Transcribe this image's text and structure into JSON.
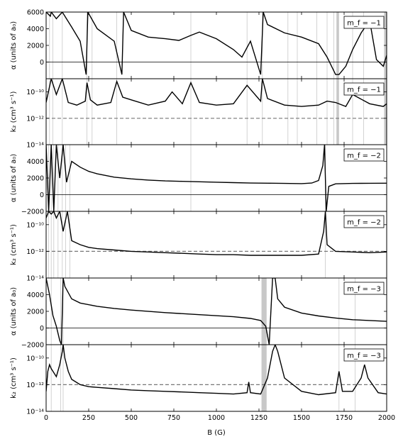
{
  "chart_data": {
    "type": "line",
    "x_axis": {
      "label": "B (G)",
      "range": [
        0,
        2000
      ],
      "ticks": [
        0,
        250,
        500,
        750,
        1000,
        1250,
        1500,
        1750,
        2000
      ],
      "tick_labels": [
        "0",
        "250",
        "500",
        "750",
        "1000",
        "1250",
        "1500",
        "1750",
        "2000"
      ]
    },
    "k2_threshold": 1e-12,
    "panels": [
      {
        "id": "alpha_m1",
        "kind": "alpha",
        "legend": "m_f = −1",
        "ylabel": "α (units of a₀)",
        "ylim": [
          -2000,
          6000
        ],
        "ticks": [
          0,
          2000,
          4000,
          6000
        ],
        "tick_labels": [
          "0",
          "2000",
          "4000",
          "6000"
        ],
        "shaded": [
          [
            1705,
            1720
          ],
          [
            1985,
            2000
          ]
        ],
        "resonance_lines": [
          20,
          40,
          95,
          240,
          270,
          415,
          850,
          1180,
          1270,
          1420,
          1475,
          1590,
          1650,
          1690,
          1800,
          1865
        ],
        "series": [
          {
            "x": [
              0,
              25,
              30,
              60,
              95,
              150,
              200,
              235,
              245,
              300,
              400,
              445,
              455,
              500,
              600,
              700,
              780,
              850,
              900,
              1000,
              1100,
              1150,
              1200,
              1260,
              1275,
              1300,
              1400,
              1500,
              1600,
              1650,
              1700,
              1720,
              1760,
              1800,
              1850,
              1900,
              1940,
              1980,
              2000
            ],
            "y": [
              6000,
              5500,
              6000,
              5200,
              6000,
              4200,
              2500,
              -1500,
              6000,
              4000,
              2500,
              -1500,
              6000,
              3800,
              3000,
              2800,
              2600,
              3200,
              3600,
              2800,
              1500,
              600,
              2500,
              -1500,
              6000,
              4500,
              3500,
              3000,
              2200,
              600,
              -1500,
              -1500,
              -500,
              1500,
              3500,
              5000,
              300,
              -500,
              800
            ]
          }
        ]
      },
      {
        "id": "k2_m1",
        "kind": "k2",
        "legend": "m_f = −1",
        "ylabel": "k₂ (cm³ s⁻¹)",
        "ylim_log10": [
          -14,
          -9
        ],
        "ticks_log10": [
          -10,
          -12,
          -14
        ],
        "tick_labels": [
          "10⁻¹⁰",
          "10⁻¹²",
          "10⁻¹⁴"
        ],
        "shaded": [
          [
            1705,
            1720
          ],
          [
            1985,
            2000
          ]
        ],
        "resonance_lines": [
          20,
          40,
          95,
          240,
          270,
          415,
          850,
          1180,
          1270,
          1420,
          1475,
          1590,
          1650,
          1690,
          1800,
          1865
        ],
        "series": [
          {
            "x": [
              0,
              30,
              60,
              95,
              130,
              180,
              230,
              240,
              260,
              300,
              380,
              415,
              450,
              500,
              600,
              700,
              740,
              800,
              850,
              900,
              1000,
              1100,
              1180,
              1260,
              1270,
              1300,
              1400,
              1500,
              1600,
              1650,
              1700,
              1760,
              1800,
              1900,
              1980,
              2000
            ],
            "y": [
              -10.8,
              -9,
              -10.2,
              -9,
              -10.8,
              -11,
              -10.7,
              -9.3,
              -10.6,
              -11,
              -10.8,
              -9.2,
              -10.4,
              -10.6,
              -11,
              -10.7,
              -10,
              -10.9,
              -9.3,
              -10.8,
              -11,
              -10.9,
              -9.5,
              -10.7,
              -9,
              -10.5,
              -11,
              -11.1,
              -11,
              -10.7,
              -10.8,
              -11.1,
              -10.2,
              -10.9,
              -11.1,
              -10.9
            ]
          }
        ]
      },
      {
        "id": "alpha_m2",
        "kind": "alpha",
        "legend": "m_f = −2",
        "ylabel": "α (units of a₀)",
        "ylim": [
          -2000,
          6000
        ],
        "ticks": [
          -2000,
          0,
          2000,
          4000
        ],
        "tick_labels": [
          "−2000",
          "0",
          "2000",
          "4000"
        ],
        "shaded": [],
        "resonance_lines": [
          15,
          30,
          45,
          70,
          95,
          115,
          140,
          850,
          1640
        ],
        "series": [
          {
            "x": [
              0,
              15,
              30,
              45,
              60,
              80,
              100,
              120,
              150,
              200,
              250,
              300,
              400,
              500,
              600,
              700,
              800,
              900,
              1000,
              1100,
              1200,
              1300,
              1400,
              1500,
              1560,
              1600,
              1625,
              1635,
              1645,
              1660,
              1700,
              1800,
              1900,
              2000
            ],
            "y": [
              6000,
              -2000,
              6000,
              -2000,
              6000,
              2000,
              6000,
              1500,
              4000,
              3300,
              2800,
              2500,
              2100,
              1900,
              1750,
              1650,
              1600,
              1550,
              1500,
              1450,
              1400,
              1380,
              1350,
              1330,
              1400,
              1700,
              3500,
              6000,
              -2000,
              1000,
              1300,
              1350,
              1370,
              1380
            ]
          }
        ]
      },
      {
        "id": "k2_m2",
        "kind": "k2",
        "legend": "m_f = −2",
        "ylabel": "k₂ (cm³ s⁻¹)",
        "ylim_log10": [
          -14,
          -9
        ],
        "ticks_log10": [
          -10,
          -12,
          -14
        ],
        "tick_labels": [
          "10⁻¹⁰",
          "10⁻¹²",
          "10⁻¹⁴"
        ],
        "shaded": [],
        "resonance_lines": [
          15,
          30,
          45,
          70,
          95,
          115,
          140,
          1640
        ],
        "series": [
          {
            "x": [
              0,
              15,
              30,
              45,
              60,
              80,
              100,
              125,
              150,
              200,
              250,
              300,
              400,
              500,
              600,
              700,
              800,
              900,
              1000,
              1100,
              1200,
              1300,
              1400,
              1500,
              1600,
              1630,
              1640,
              1650,
              1700,
              1800,
              1900,
              2000
            ],
            "y": [
              -9.5,
              -9,
              -9.2,
              -9,
              -9.5,
              -9,
              -10.5,
              -9,
              -11.2,
              -11.5,
              -11.7,
              -11.8,
              -11.9,
              -12,
              -12.05,
              -12.1,
              -12.15,
              -12.2,
              -12.25,
              -12.25,
              -12.3,
              -12.3,
              -12.3,
              -12.3,
              -12.2,
              -10.5,
              -9,
              -11.5,
              -12,
              -12.05,
              -12.1,
              -12.05
            ]
          }
        ]
      },
      {
        "id": "alpha_m3",
        "kind": "alpha",
        "legend": "m_f = −3",
        "ylabel": "α (units of a₀)",
        "ylim": [
          -2000,
          6000
        ],
        "ticks": [
          -2000,
          0,
          2000,
          4000
        ],
        "tick_labels": [
          "−2000",
          "0",
          "2000",
          "4000"
        ],
        "shaded": [
          [
            1265,
            1295
          ]
        ],
        "resonance_lines": [
          30,
          85,
          100,
          1720,
          1815
        ],
        "series": [
          {
            "x": [
              0,
              20,
              40,
              60,
              80,
              90,
              100,
              110,
              150,
              200,
              300,
              400,
              500,
              700,
              900,
              1100,
              1200,
              1260,
              1290,
              1310,
              1330,
              1345,
              1360,
              1400,
              1500,
              1600,
              1700,
              1800,
              1900,
              2000
            ],
            "y": [
              6000,
              4000,
              1500,
              200,
              -1500,
              -2000,
              6000,
              5000,
              3500,
              3000,
              2600,
              2350,
              2150,
              1850,
              1600,
              1350,
              1150,
              900,
              200,
              -2000,
              6000,
              6000,
              3500,
              2500,
              1800,
              1450,
              1200,
              1000,
              900,
              800
            ]
          }
        ]
      },
      {
        "id": "k2_m3",
        "kind": "k2",
        "legend": "m_f = −3",
        "ylabel": "k₂ (cm³ s⁻¹)",
        "ylim_log10": [
          -14,
          -9
        ],
        "ticks_log10": [
          -10,
          -12,
          -14
        ],
        "tick_labels": [
          "10⁻¹⁰",
          "10⁻¹²",
          "10⁻¹⁴"
        ],
        "shaded": [
          [
            1265,
            1295
          ]
        ],
        "resonance_lines": [
          30,
          85,
          100,
          1720,
          1815
        ],
        "series": [
          {
            "x": [
              0,
              10,
              20,
              30,
              60,
              80,
              95,
              100,
              110,
              130,
              150,
              200,
              250,
              300,
              400,
              500,
              600,
              700,
              800,
              900,
              1000,
              1100,
              1180,
              1190,
              1200,
              1260,
              1300,
              1330,
              1345,
              1360,
              1400,
              1500,
              1600,
              1700,
              1720,
              1740,
              1800,
              1850,
              1870,
              1890,
              1950,
              2000
            ],
            "y": [
              -12.5,
              -11,
              -10.5,
              -10.8,
              -11.4,
              -10.5,
              -9.5,
              -9,
              -10,
              -11,
              -11.6,
              -12,
              -12.15,
              -12.2,
              -12.3,
              -12.4,
              -12.45,
              -12.5,
              -12.55,
              -12.6,
              -12.65,
              -12.7,
              -12.6,
              -11.8,
              -12.6,
              -12.7,
              -11.5,
              -9.5,
              -9,
              -9.5,
              -11.5,
              -12.5,
              -12.75,
              -12.6,
              -11,
              -12.5,
              -12.5,
              -11.5,
              -10.5,
              -11.5,
              -12.6,
              -12.7
            ]
          }
        ]
      }
    ]
  }
}
